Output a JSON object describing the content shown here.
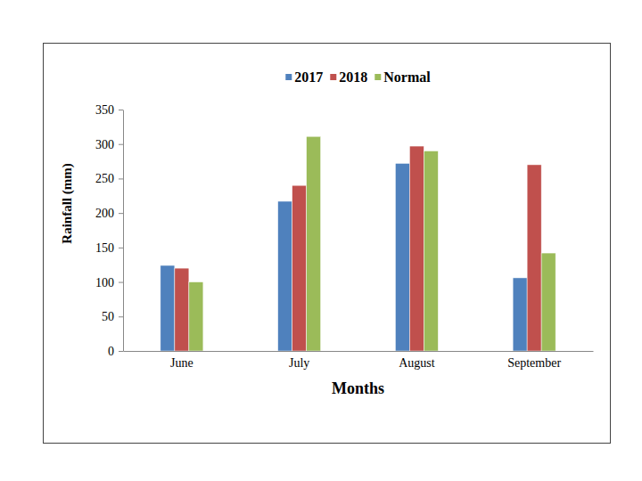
{
  "chart_data": {
    "type": "bar",
    "x_label": "Months",
    "y_label": "Rainfall (mm)",
    "categories": [
      "June",
      "July",
      "August",
      "September"
    ],
    "series": [
      {
        "name": "2017",
        "color": "#4f81bd",
        "values": [
          124,
          217,
          272,
          106
        ]
      },
      {
        "name": "2018",
        "color": "#c0504d",
        "values": [
          120,
          240,
          297,
          270
        ]
      },
      {
        "name": "Normal",
        "color": "#9bbb59",
        "values": [
          100,
          311,
          290,
          142
        ]
      }
    ],
    "ylim": [
      0,
      350
    ],
    "yticks": [
      0,
      50,
      100,
      150,
      200,
      250,
      300,
      350
    ],
    "grid": false,
    "legend": "top"
  }
}
